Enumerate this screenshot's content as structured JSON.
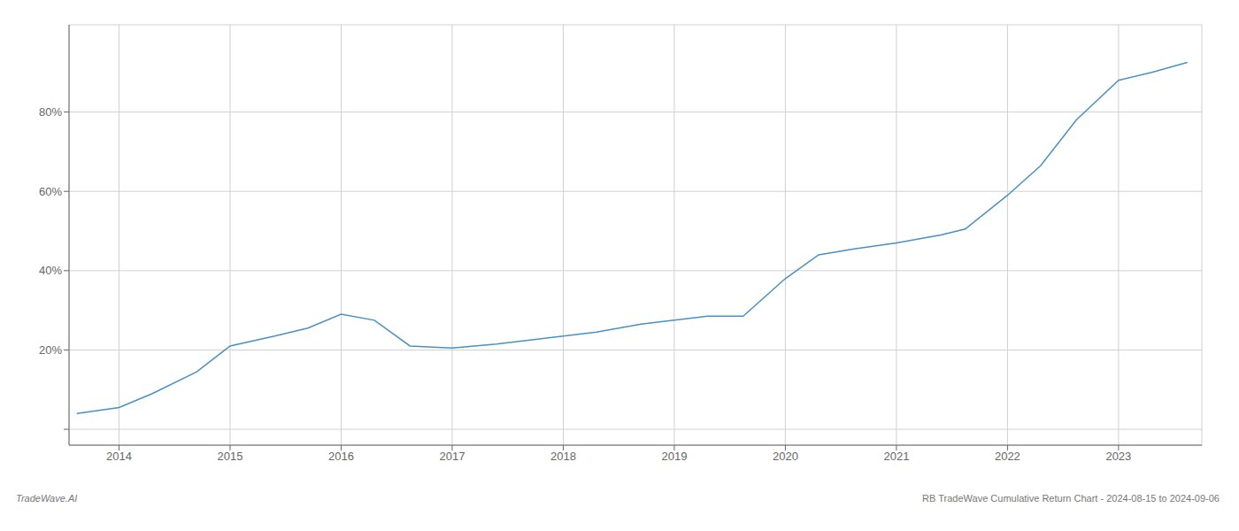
{
  "chart_data": {
    "type": "line",
    "x": [
      2013.62,
      2014.0,
      2014.3,
      2014.7,
      2015.0,
      2015.4,
      2015.7,
      2016.0,
      2016.3,
      2016.62,
      2017.0,
      2017.4,
      2017.7,
      2018.0,
      2018.3,
      2018.7,
      2019.0,
      2019.3,
      2019.62,
      2020.0,
      2020.3,
      2020.62,
      2021.0,
      2021.2,
      2021.4,
      2021.62,
      2022.0,
      2022.3,
      2022.62,
      2023.0,
      2023.3,
      2023.62
    ],
    "values": [
      0.04,
      0.055,
      0.09,
      0.145,
      0.21,
      0.235,
      0.255,
      0.29,
      0.275,
      0.21,
      0.205,
      0.215,
      0.225,
      0.235,
      0.245,
      0.265,
      0.275,
      0.285,
      0.285,
      0.38,
      0.44,
      0.455,
      0.47,
      0.48,
      0.49,
      0.505,
      0.59,
      0.665,
      0.78,
      0.88,
      0.9,
      0.925
    ],
    "color": "#4a90c4",
    "xlim": [
      2013.55,
      2023.75
    ],
    "xticks": [
      2014,
      2015,
      2016,
      2017,
      2018,
      2019,
      2020,
      2021,
      2022,
      2023
    ],
    "ylim": [
      -0.04,
      1.02
    ],
    "yticks": [
      {
        "value": 0.0,
        "label": null
      },
      {
        "value": 0.2,
        "label": "20%"
      },
      {
        "value": 0.4,
        "label": "40%"
      },
      {
        "value": 0.6,
        "label": "60%"
      },
      {
        "value": 0.8,
        "label": "80%"
      }
    ],
    "grid": true,
    "annotations": [
      "TradeWave.AI",
      "RB TradeWave Cumulative Return Chart - 2024-08-15 to 2024-09-06"
    ]
  }
}
